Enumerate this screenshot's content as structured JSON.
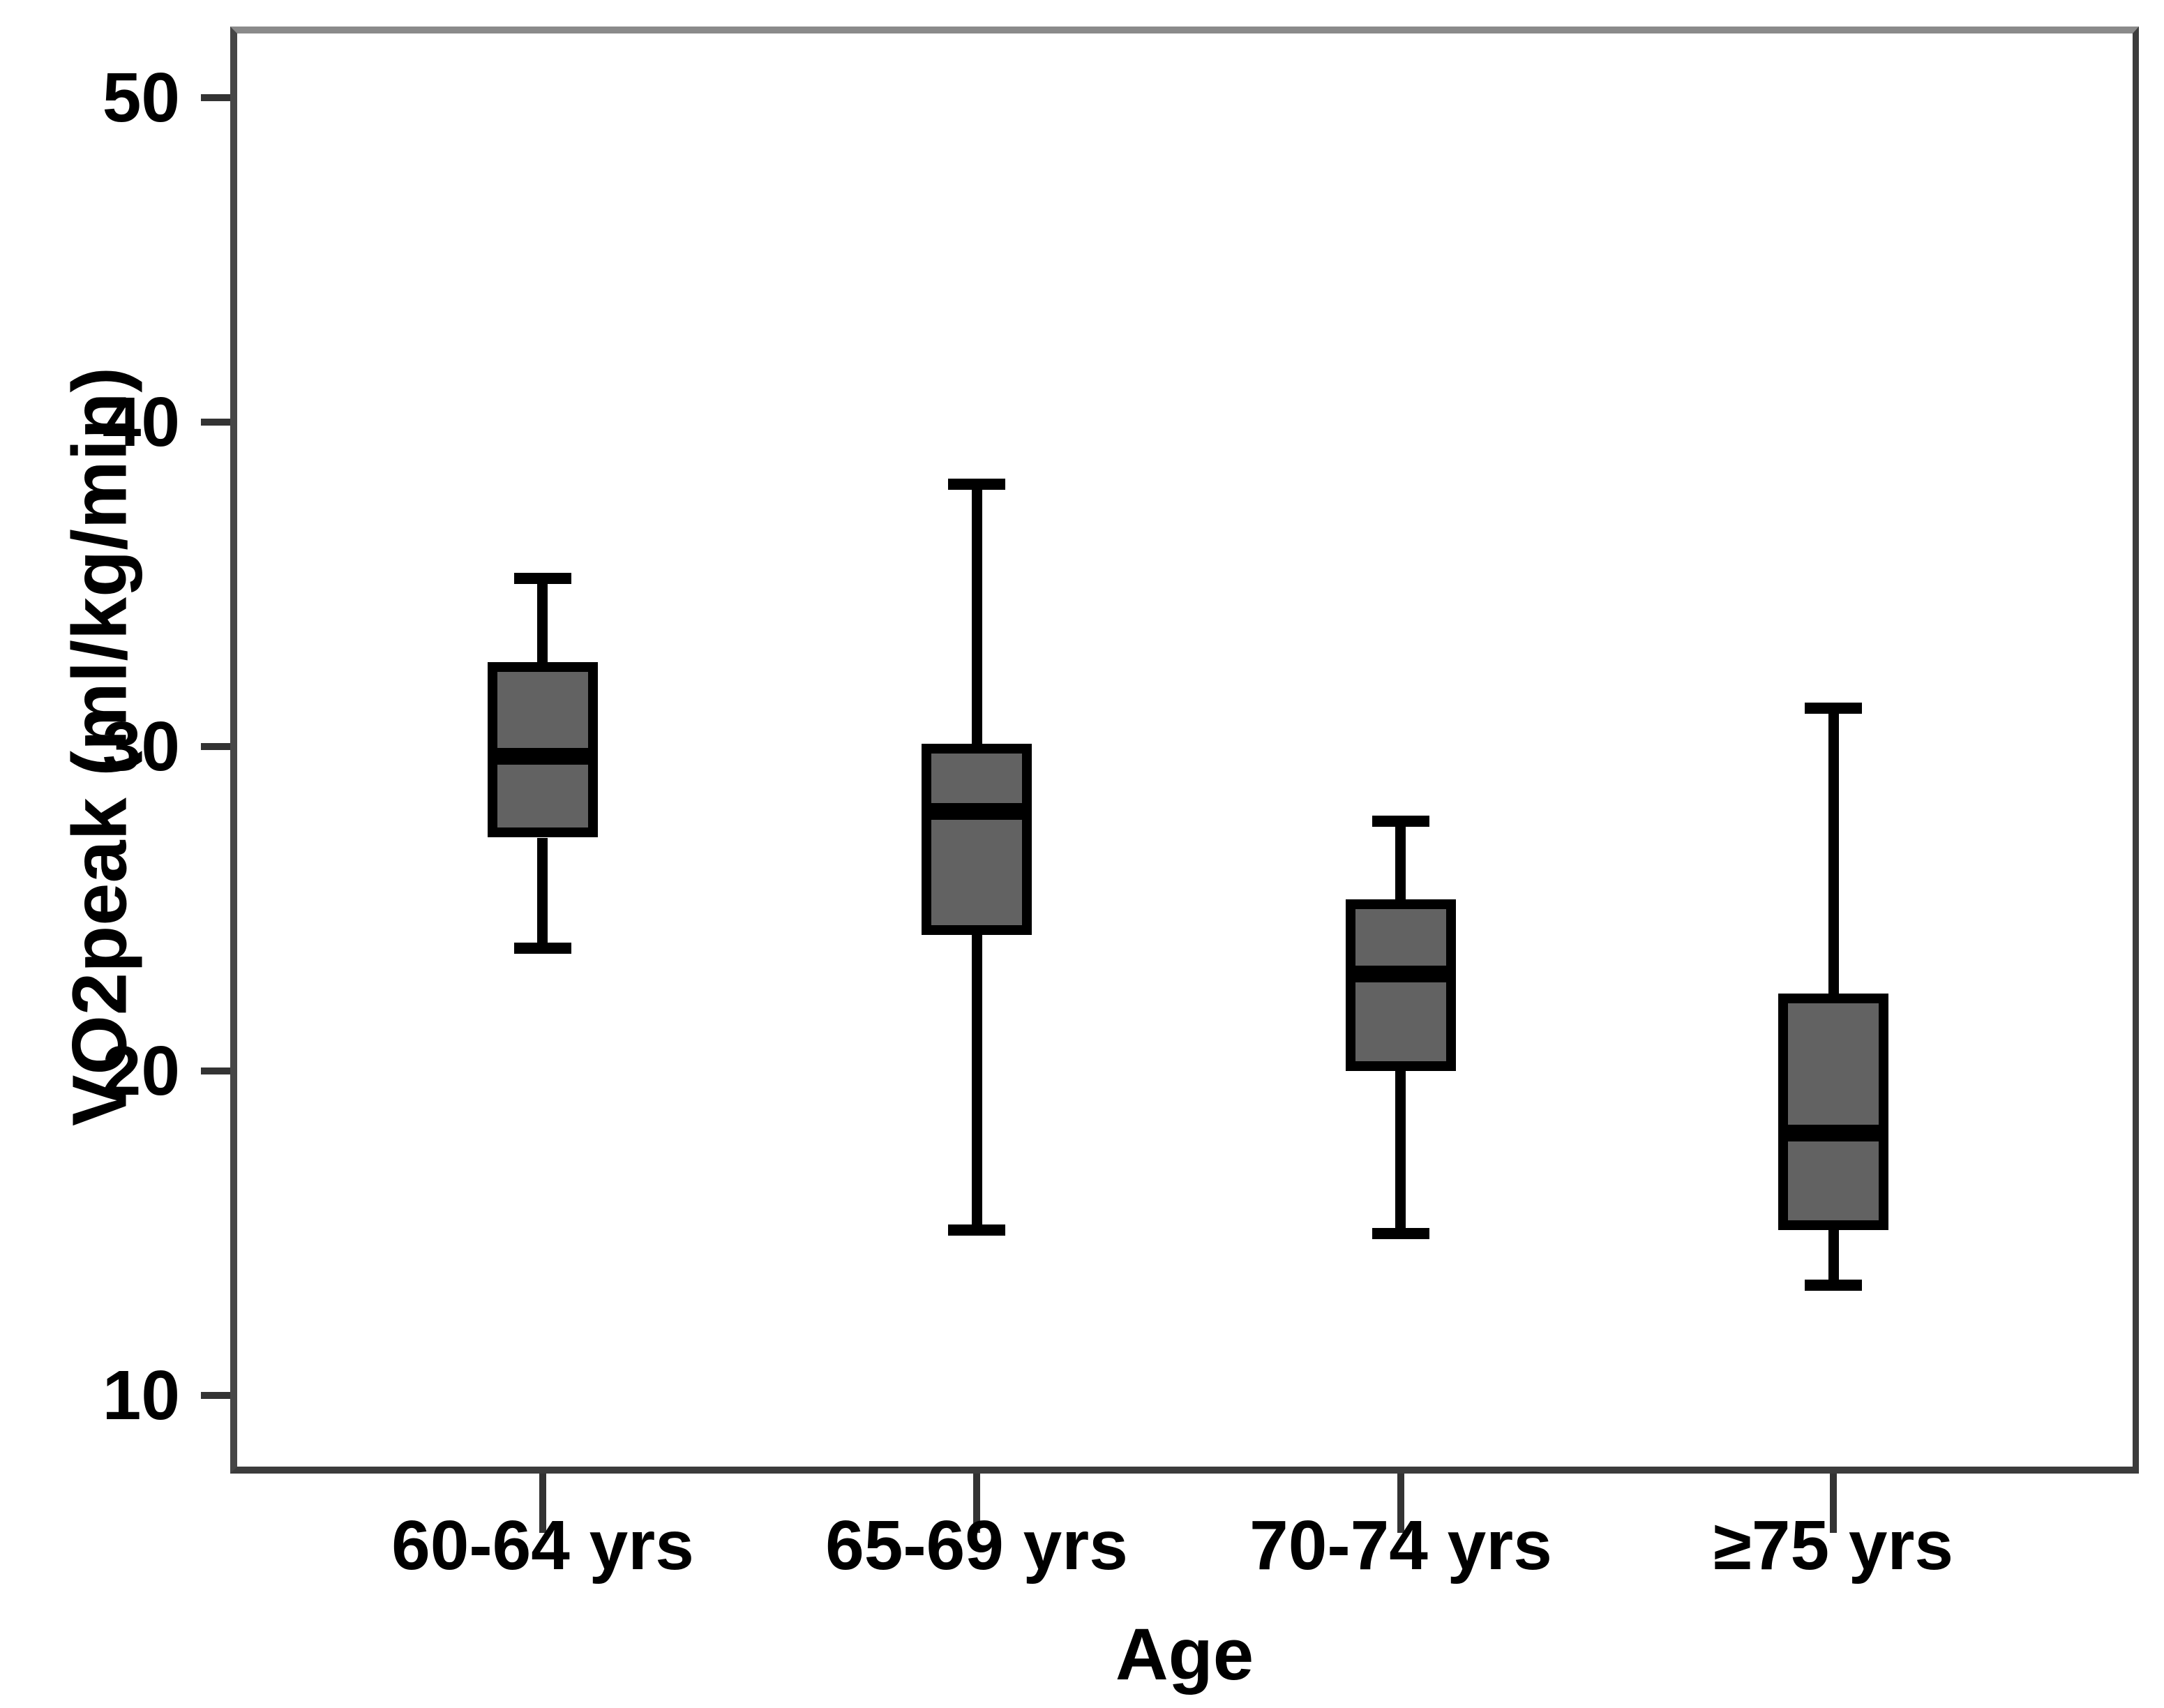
{
  "figure": {
    "background": "#ffffff"
  },
  "chart_data": {
    "type": "boxplot",
    "title": "",
    "xlabel": "Age",
    "ylabel": "VO2peak (ml/kg/min)",
    "categories": [
      "60-64 yrs",
      "65-69 yrs",
      "70-74 yrs",
      "≥75 yrs"
    ],
    "y_ticks": [
      "50",
      "40",
      "30",
      "20",
      "10"
    ],
    "y_tick_values": [
      50,
      40,
      30,
      20,
      10
    ],
    "ylim": [
      7.6,
      52.2
    ],
    "grid": "off",
    "legend": "none",
    "boxes": [
      {
        "category": "60-64 yrs",
        "whisker_low": 23.8,
        "q1": 27.2,
        "median": 29.7,
        "q3": 32.6,
        "whisker_high": 35.2
      },
      {
        "category": "65-69 yrs",
        "whisker_low": 15.1,
        "q1": 24.2,
        "median": 28.0,
        "q3": 30.1,
        "whisker_high": 38.1
      },
      {
        "category": "70-74 yrs",
        "whisker_low": 15.0,
        "q1": 20.0,
        "median": 23.0,
        "q3": 25.3,
        "whisker_high": 27.7
      },
      {
        "category": "≥75 yrs",
        "whisker_low": 13.4,
        "q1": 15.1,
        "median": 18.1,
        "q3": 22.4,
        "whisker_high": 31.2
      }
    ],
    "colors": {
      "box_fill": "#626262",
      "box_border": "#000000",
      "median": "#000000",
      "whisker": "#000000",
      "tick": "#333333",
      "frame_left": "#464646",
      "frame_bottom": "#3c3c3c",
      "frame_right": "#3c3c3c",
      "frame_top": "#8a8a8a",
      "text": "#000000"
    }
  }
}
